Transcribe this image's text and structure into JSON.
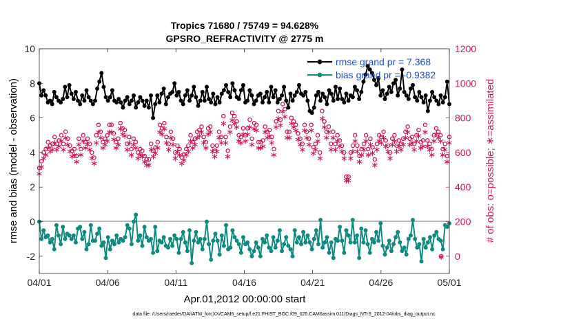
{
  "chart_data": {
    "type": "line",
    "title_line1": "Tropics 71680 / 75749 = 94.628%",
    "title_line2": "GPSRO_REFRACTIVITY @ 2775 m",
    "xlabel": "Apr.01,2012 00:00:00 start",
    "ylabel_left": "rmse and bias (model - observation)",
    "ylabel_right": "# of obs: o=possible; ∗=assimilated",
    "footnote": "data file: /Users/raeder/DAI/ATM_forcXX/CAM6_setup/f.e21.FHIST_BGC.f09_025.CAM6assim.011/Diags_NTrS_2012-04/obs_diag_output.nc",
    "x_range": [
      0,
      30
    ],
    "x_ticks": [
      0,
      5,
      10,
      15,
      20,
      25,
      30
    ],
    "x_tick_labels": [
      "04/01",
      "04/06",
      "04/11",
      "04/16",
      "04/21",
      "04/26",
      "05/01"
    ],
    "y_left_range": [
      -3,
      10
    ],
    "y_left_ticks": [
      -2,
      0,
      2,
      4,
      6,
      8,
      10
    ],
    "y_left_tick_labels": [
      "-2",
      "0",
      "2",
      "4",
      "6",
      "8",
      "10"
    ],
    "y_right_range": [
      -100,
      1200
    ],
    "y_right_ticks": [
      0,
      200,
      400,
      600,
      800,
      1000,
      1200
    ],
    "y_right_tick_labels": [
      "0",
      "200",
      "400",
      "600",
      "800",
      "1000",
      "1200"
    ],
    "legend": [
      {
        "label": "rmse grand pr = 7.368",
        "color": "#000000"
      },
      {
        "label": "bias grand pr = -0.9382",
        "color": "#0f8a80"
      }
    ],
    "colors": {
      "rmse": "#000000",
      "bias": "#0f8a80",
      "obs": "#d01458",
      "legend_text": "#1a4fd6",
      "zero_line": "#b4b4b4"
    },
    "series": [
      {
        "name": "rmse",
        "values": [
          8.0,
          7.3,
          7.6,
          7.3,
          6.9,
          7.0,
          6.8,
          7.5,
          7.2,
          7.0,
          6.9,
          7.1,
          7.8,
          7.2,
          7.9,
          7.4,
          7.1,
          7.5,
          7.0,
          6.8,
          7.3,
          7.0,
          7.6,
          7.2,
          7.0,
          6.8,
          7.0,
          7.7,
          8.1,
          8.6,
          7.8,
          7.2,
          7.0,
          7.2,
          7.6,
          7.0,
          6.9,
          7.1,
          6.9,
          6.6,
          7.0,
          7.2,
          6.8,
          7.0,
          7.3,
          6.6,
          6.9,
          7.2,
          7.0,
          6.7,
          7.0,
          6.6,
          7.3,
          6.0,
          6.8,
          7.3,
          6.9,
          7.4,
          7.7,
          6.8,
          7.2,
          7.4,
          7.5,
          8.0,
          7.3,
          7.5,
          7.0,
          6.8,
          7.3,
          7.6,
          7.0,
          7.3,
          7.8,
          7.2,
          6.7,
          7.0,
          7.5,
          7.0,
          7.8,
          7.1,
          6.9,
          7.4,
          6.8,
          7.2,
          6.9,
          7.4,
          7.6,
          7.9,
          7.5,
          7.2,
          8.0,
          7.6,
          7.2,
          7.1,
          7.6,
          7.9,
          6.9,
          7.0,
          7.6,
          7.3,
          6.8,
          7.0,
          7.3,
          7.4,
          6.9,
          7.2,
          7.5,
          6.9,
          7.8,
          7.2,
          7.6,
          6.9,
          7.1,
          7.3,
          7.8,
          7.0,
          6.6,
          7.4,
          7.0,
          7.3,
          7.5,
          7.9,
          7.4,
          7.3,
          7.5,
          7.0,
          6.4,
          6.3,
          6.6,
          7.3,
          7.5,
          7.0,
          7.4,
          7.2,
          6.8,
          7.6,
          7.4,
          7.0,
          7.8,
          7.1,
          7.7,
          7.1,
          6.9,
          7.4,
          7.0,
          7.3,
          7.2,
          7.8,
          7.6,
          7.1,
          7.5,
          8.1,
          8.5,
          9.0,
          8.8,
          8.6,
          8.2,
          7.9,
          8.3,
          7.3,
          7.6,
          7.1,
          7.4,
          7.8,
          7.5,
          8.0,
          8.2,
          7.3,
          7.7,
          8.8,
          7.5,
          7.3,
          7.1,
          7.7,
          7.9,
          7.2,
          7.0,
          7.5,
          7.2,
          6.9,
          7.3,
          6.4,
          7.0,
          7.5,
          7.2,
          7.0,
          6.8,
          7.3,
          6.9,
          7.2,
          8.1,
          6.8
        ]
      },
      {
        "name": "bias",
        "values": [
          0.0,
          -1.0,
          -0.5,
          -0.9,
          -0.8,
          -1.2,
          -1.0,
          -1.6,
          -0.2,
          -0.8,
          -1.3,
          -0.3,
          -1.0,
          -0.7,
          -0.8,
          -1.0,
          -0.8,
          -1.2,
          -0.4,
          -0.3,
          -1.0,
          -0.6,
          -1.6,
          -1.3,
          -0.2,
          -1.1,
          -1.1,
          -0.7,
          -0.4,
          -1.4,
          -1.2,
          -2.1,
          -0.9,
          -1.6,
          -1.1,
          -1.3,
          -0.8,
          -1.2,
          -1.0,
          -1.1,
          -0.9,
          -0.2,
          -0.4,
          -1.3,
          0.0,
          0.4,
          -1.1,
          -0.8,
          -1.4,
          -0.3,
          -0.9,
          -1.1,
          -1.0,
          -1.8,
          -0.3,
          -1.7,
          -1.1,
          -1.2,
          -0.9,
          -1.4,
          -1.5,
          -1.0,
          -1.4,
          -0.8,
          -1.0,
          -1.8,
          -1.0,
          -0.6,
          -1.2,
          -1.7,
          -0.5,
          -2.4,
          -1.1,
          -0.6,
          -1.2,
          -1.0,
          -1.6,
          -1.0,
          0.0,
          -1.3,
          -2.2,
          -1.1,
          -0.7,
          -1.1,
          -1.9,
          -0.8,
          -1.4,
          -0.2,
          -1.6,
          -1.5,
          -0.5,
          -0.9,
          -1.1,
          -1.3,
          -1.8,
          -0.9,
          -1.3,
          -1.2,
          -1.6,
          -2.0,
          -1.7,
          -1.2,
          -1.5,
          -2.0,
          -1.0,
          -1.2,
          -0.8,
          -1.5,
          -1.7,
          -0.9,
          -1.5,
          -1.1,
          -0.5,
          -1.7,
          -1.3,
          -0.9,
          -1.4,
          -1.6,
          -2.0,
          -0.5,
          -1.2,
          -0.9,
          -1.3,
          -0.6,
          -1.2,
          -0.8,
          -1.2,
          -1.6,
          -1.0,
          -0.5,
          -1.3,
          0.1,
          -1.5,
          -1.2,
          -0.9,
          -1.8,
          -1.2,
          -2.1,
          -1.0,
          -1.1,
          -0.3,
          -1.1,
          -1.8,
          -0.5,
          -0.8,
          -1.2,
          0.1,
          -1.2,
          -0.8,
          -2.1,
          -0.4,
          -1.2,
          -0.5,
          -1.3,
          -1.8,
          -1.0,
          -1.2,
          -0.6,
          -1.1,
          -0.1,
          -1.4,
          -1.9,
          -1.5,
          -1.1,
          -1.7,
          -1.3,
          -0.9,
          -0.6,
          -1.2,
          -1.7,
          -1.5,
          -1.9,
          -1.0,
          -0.8,
          0.1,
          -1.0,
          -1.5,
          -1.3,
          -2.3,
          -1.0,
          -1.5,
          -1.2,
          -0.9,
          -1.6,
          -0.8,
          -0.6,
          -1.0,
          -1.1,
          -1.6,
          -0.2,
          -0.3,
          -0.1
        ]
      },
      {
        "name": "obs_possible",
        "values": [
          510,
          550,
          600,
          620,
          660,
          640,
          650,
          690,
          650,
          670,
          700,
          650,
          720,
          680,
          640,
          610,
          620,
          580,
          680,
          620,
          700,
          660,
          680,
          650,
          600,
          570,
          700,
          760,
          720,
          660,
          680,
          700,
          760,
          760,
          710,
          660,
          680,
          770,
          740,
          730,
          650,
          690,
          620,
          680,
          660,
          600,
          620,
          610,
          580,
          560,
          560,
          650,
          610,
          630,
          660,
          760,
          740,
          770,
          690,
          650,
          720,
          680,
          600,
          640,
          620,
          570,
          590,
          620,
          640,
          700,
          660,
          680,
          720,
          730,
          750,
          690,
          660,
          740,
          750,
          640,
          610,
          640,
          720,
          690,
          810,
          690,
          610,
          750,
          830,
          810,
          780,
          700,
          690,
          740,
          700,
          740,
          790,
          680,
          770,
          760,
          660,
          660,
          670,
          750,
          720,
          730,
          690,
          620,
          780,
          840,
          790,
          880,
          850,
          720,
          720,
          800,
          780,
          760,
          710,
          680,
          650,
          760,
          720,
          680,
          760,
          630,
          650,
          700,
          600,
          840,
          780,
          720,
          750,
          650,
          720,
          650,
          700,
          670,
          640,
          600,
          460,
          460,
          600,
          640,
          700,
          640,
          580,
          620,
          650,
          700,
          620,
          680,
          630,
          560,
          650,
          700,
          690,
          720,
          670,
          640,
          600,
          680,
          700,
          640,
          670,
          650,
          680,
          720,
          750,
          680,
          690,
          650,
          700,
          730,
          660,
          670,
          760,
          670,
          650,
          620,
          700,
          740,
          720,
          700,
          620,
          650,
          580,
          690
        ]
      },
      {
        "name": "obs_assimilated",
        "values": [
          480,
          520,
          570,
          590,
          630,
          610,
          620,
          660,
          620,
          640,
          670,
          620,
          690,
          650,
          610,
          580,
          590,
          550,
          650,
          590,
          670,
          630,
          650,
          620,
          570,
          540,
          660,
          720,
          690,
          630,
          650,
          670,
          720,
          720,
          680,
          630,
          650,
          740,
          710,
          700,
          620,
          660,
          590,
          650,
          630,
          570,
          590,
          580,
          550,
          530,
          530,
          620,
          580,
          600,
          630,
          720,
          710,
          740,
          660,
          620,
          690,
          650,
          570,
          610,
          590,
          540,
          560,
          590,
          610,
          670,
          630,
          650,
          690,
          700,
          720,
          660,
          630,
          710,
          720,
          610,
          580,
          610,
          690,
          660,
          770,
          660,
          580,
          720,
          790,
          770,
          750,
          670,
          660,
          710,
          670,
          710,
          750,
          650,
          740,
          730,
          630,
          630,
          640,
          720,
          690,
          700,
          660,
          590,
          750,
          800,
          760,
          840,
          810,
          690,
          690,
          770,
          750,
          730,
          680,
          650,
          620,
          730,
          690,
          650,
          730,
          600,
          620,
          670,
          570,
          800,
          750,
          690,
          720,
          620,
          690,
          620,
          670,
          640,
          610,
          570,
          440,
          440,
          570,
          610,
          670,
          610,
          550,
          590,
          620,
          670,
          590,
          650,
          600,
          530,
          620,
          670,
          660,
          690,
          640,
          610,
          570,
          650,
          670,
          610,
          640,
          620,
          650,
          690,
          720,
          650,
          660,
          620,
          670,
          700,
          630,
          640,
          720,
          640,
          620,
          590,
          670,
          710,
          690,
          670,
          590,
          620,
          550,
          660
        ]
      }
    ],
    "outlier_markers": [
      {
        "series": "obs_possible",
        "x": 29.4,
        "y": 0
      },
      {
        "series": "obs_assimilated",
        "x": 29.4,
        "y": 0
      }
    ]
  }
}
